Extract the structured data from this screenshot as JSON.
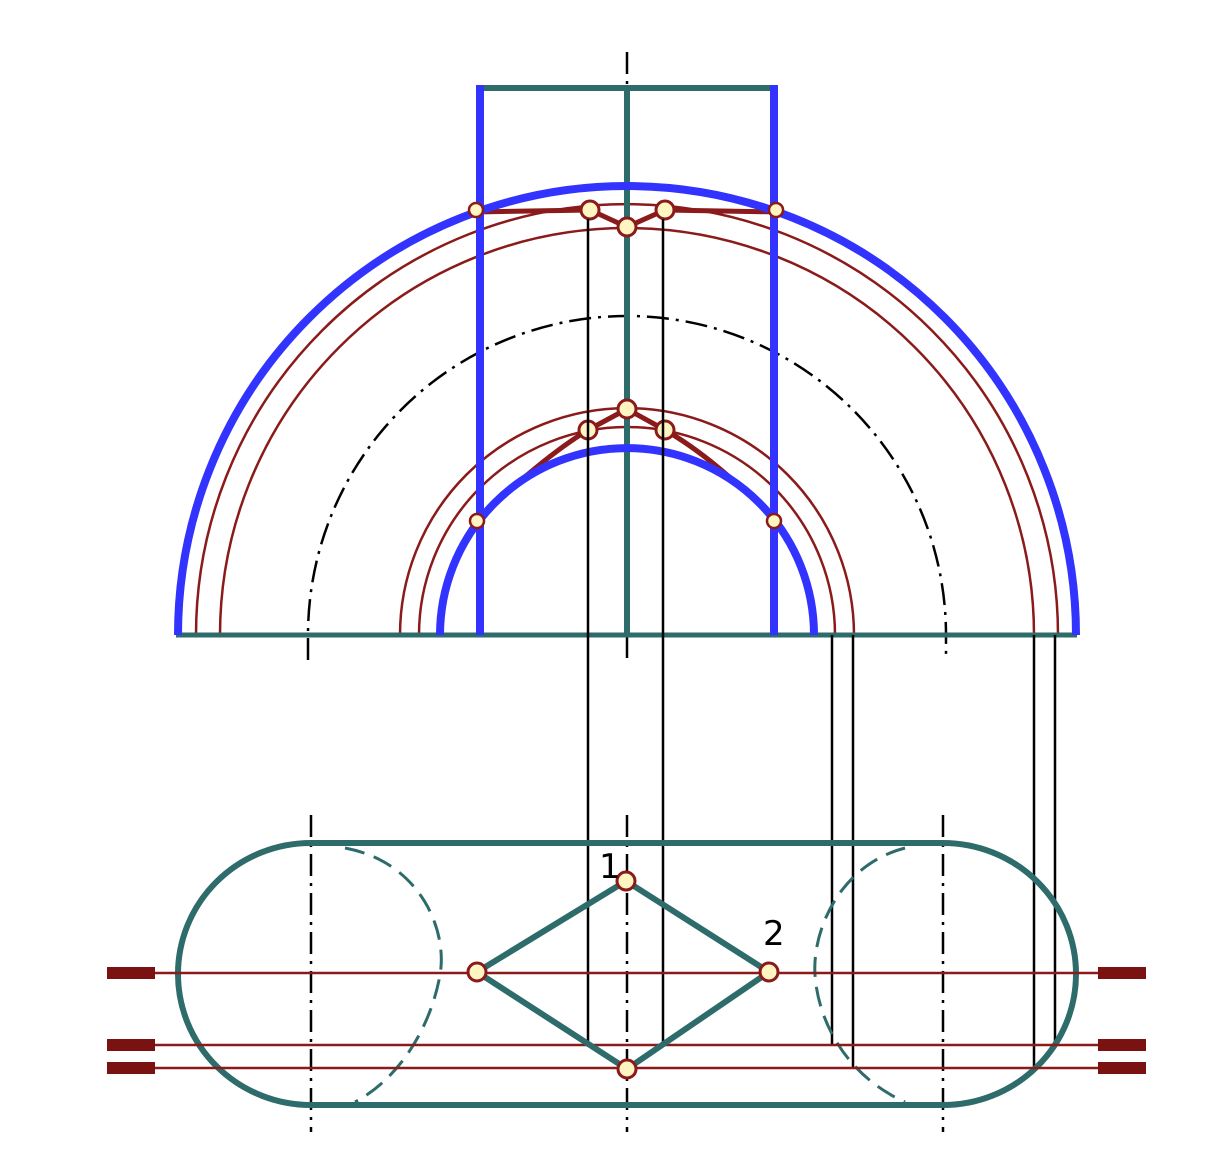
{
  "diagram": {
    "point_labels": [
      "1",
      "2"
    ],
    "colors": {
      "background": "#ffffff",
      "torus_outline": "#3333ff",
      "cylinder_outline": "#2e6b6b",
      "section_lines": "#8b1a1a",
      "construction_lines": "#000000",
      "point_fill": "#fff5c2",
      "point_stroke": "#8b1a1a",
      "cutting_plane_marks": "#7a1212"
    },
    "line_styles": [
      "solid",
      "dashed",
      "dash-dot"
    ]
  }
}
